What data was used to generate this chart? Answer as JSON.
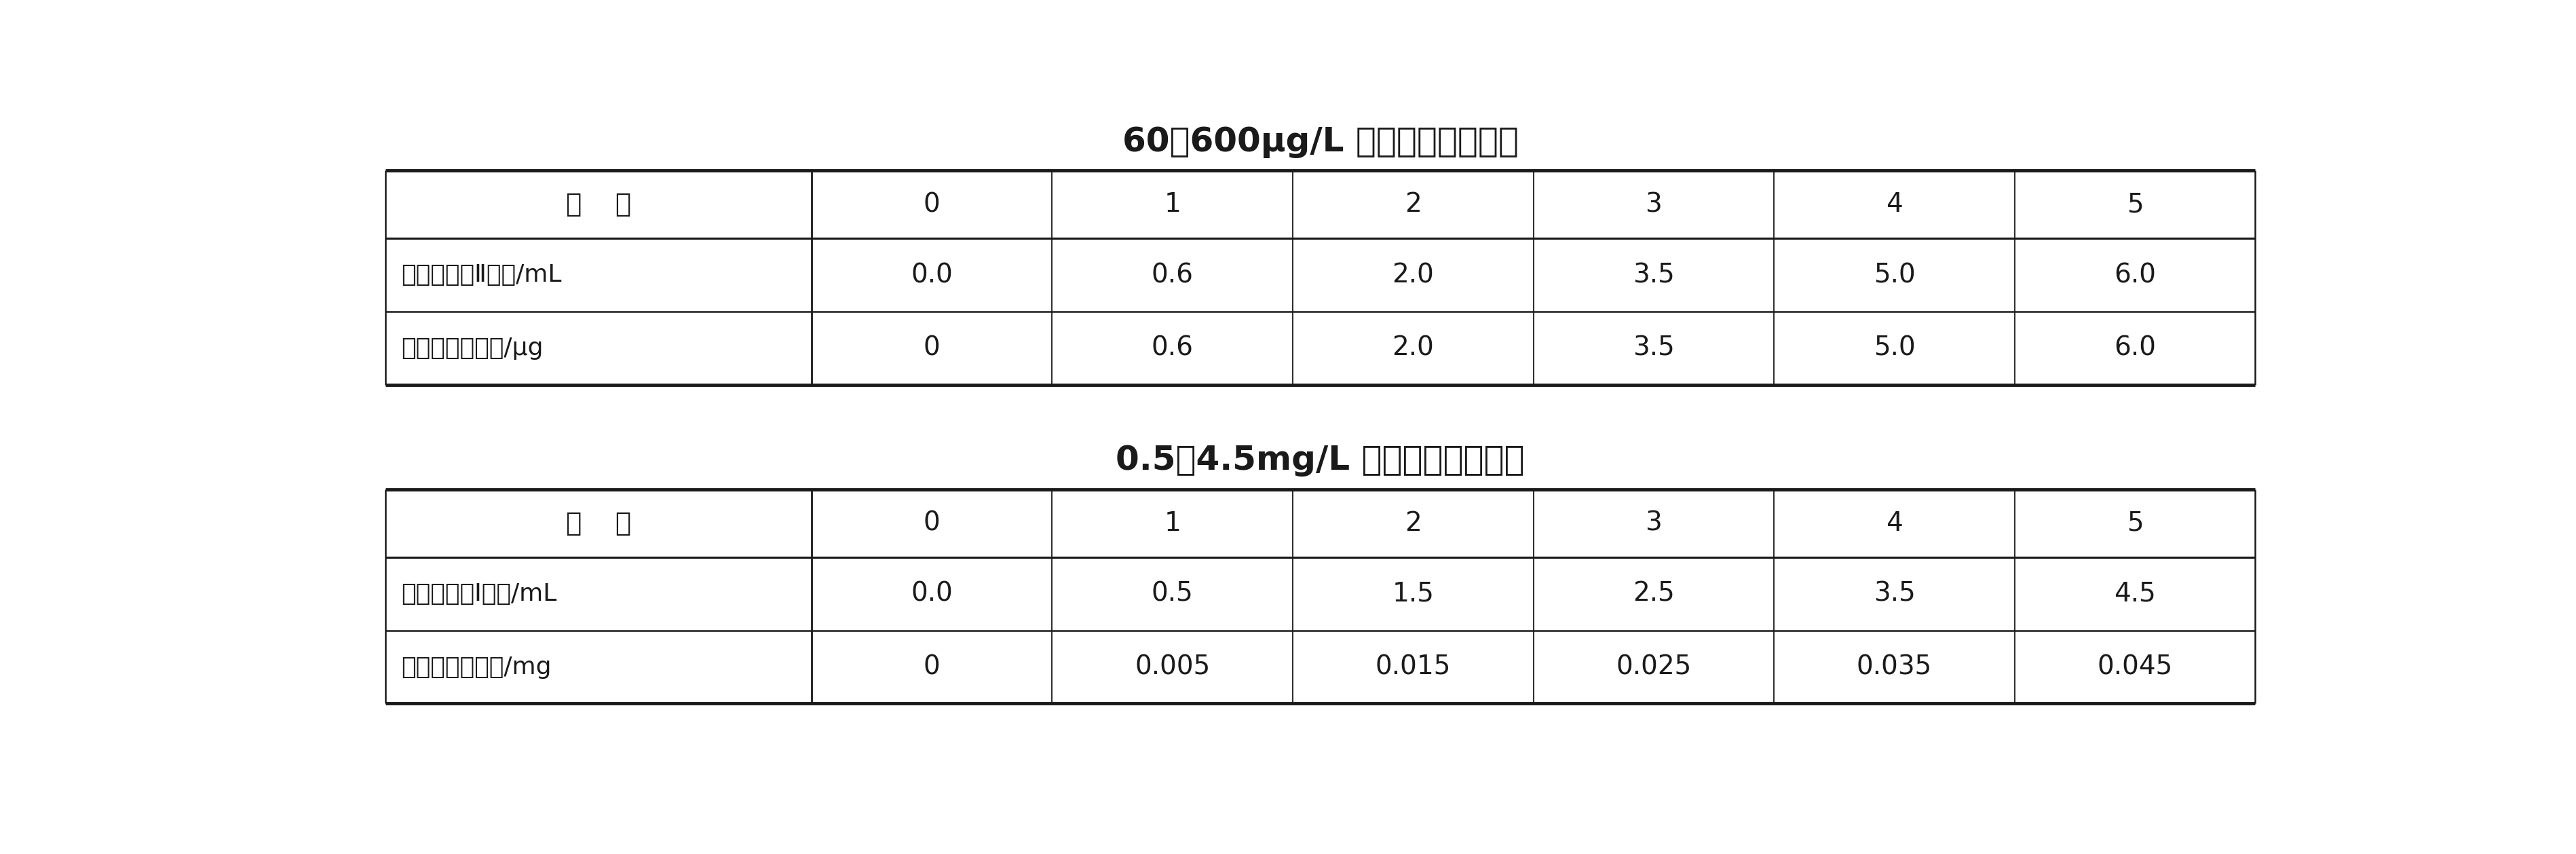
{
  "title1": "60～600μg/L 氨标准溶液的配制",
  "title2": "0.5～4.5mg/L 氨标准溶液的配制",
  "table1": {
    "header_col": "编    号",
    "col_headers": [
      "0",
      "1",
      "2",
      "3",
      "4",
      "5"
    ],
    "row_labels": [
      "氨工作溶液Ⅱ体积/mL",
      "相当水样氨含量/μg"
    ],
    "data": [
      [
        "0.0",
        "0.6",
        "2.0",
        "3.5",
        "5.0",
        "6.0"
      ],
      [
        "0",
        "0.6",
        "2.0",
        "3.5",
        "5.0",
        "6.0"
      ]
    ]
  },
  "table2": {
    "header_col": "编    号",
    "col_headers": [
      "0",
      "1",
      "2",
      "3",
      "4",
      "5"
    ],
    "row_labels": [
      "氨工作溶液Ⅰ体积/mL",
      "相当水样氨含量/mg"
    ],
    "data": [
      [
        "0.0",
        "0.5",
        "1.5",
        "2.5",
        "3.5",
        "4.5"
      ],
      [
        "0",
        "0.005",
        "0.015",
        "0.025",
        "0.035",
        "0.045"
      ]
    ]
  },
  "bg_color": "#ffffff",
  "line_color": "#1a1a1a",
  "title_fontsize": 36,
  "header_fontsize": 28,
  "cell_fontsize": 28,
  "label_fontsize": 26
}
